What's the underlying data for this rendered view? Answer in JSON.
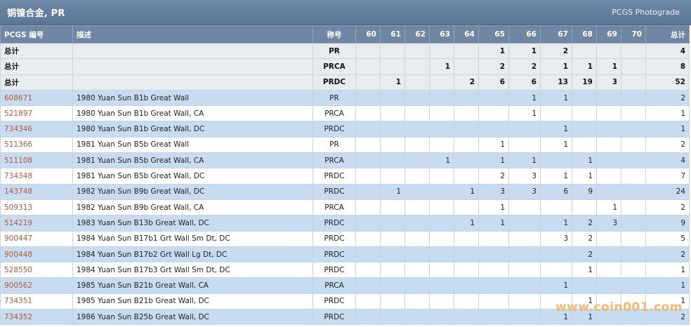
{
  "header": {
    "title": "铜镍合金, PR",
    "brand": "PCGS Photograde"
  },
  "columns": {
    "pcgs": "PCGS 编号",
    "desc": "描述",
    "designation": "称号",
    "grades": [
      "60",
      "61",
      "62",
      "63",
      "64",
      "65",
      "66",
      "67",
      "68",
      "69",
      "70"
    ],
    "total": "总计"
  },
  "totals": [
    {
      "label": "总计",
      "designation": "PR",
      "grades": [
        "",
        "",
        "",
        "",
        "",
        "1",
        "1",
        "2",
        "",
        "",
        ""
      ],
      "total": "4"
    },
    {
      "label": "总计",
      "designation": "PRCA",
      "grades": [
        "",
        "",
        "",
        "1",
        "",
        "2",
        "2",
        "1",
        "1",
        "1",
        ""
      ],
      "total": "8"
    },
    {
      "label": "总计",
      "designation": "PRDC",
      "grades": [
        "",
        "1",
        "",
        "",
        "2",
        "6",
        "6",
        "13",
        "19",
        "3",
        ""
      ],
      "total": "52"
    }
  ],
  "rows": [
    {
      "pcgs": "608671",
      "desc": "1980 Yuan Sun B1b Great Wall",
      "designation": "PR",
      "grades": [
        "",
        "",
        "",
        "",
        "",
        "",
        "1",
        "1",
        "",
        "",
        ""
      ],
      "total": "2"
    },
    {
      "pcgs": "521897",
      "desc": "1980 Yuan Sun B1b Great Wall, CA",
      "designation": "PRCA",
      "grades": [
        "",
        "",
        "",
        "",
        "",
        "",
        "1",
        "",
        "",
        "",
        ""
      ],
      "total": "1"
    },
    {
      "pcgs": "734346",
      "desc": "1980 Yuan Sun B1b Great Wall, DC",
      "designation": "PRDC",
      "grades": [
        "",
        "",
        "",
        "",
        "",
        "",
        "",
        "1",
        "",
        "",
        ""
      ],
      "total": "1"
    },
    {
      "pcgs": "511366",
      "desc": "1981 Yuan Sun B5b Great Wall",
      "designation": "PR",
      "grades": [
        "",
        "",
        "",
        "",
        "",
        "1",
        "",
        "1",
        "",
        "",
        ""
      ],
      "total": "2"
    },
    {
      "pcgs": "511108",
      "desc": "1981 Yuan Sun B5b Great Wall, CA",
      "designation": "PRCA",
      "grades": [
        "",
        "",
        "",
        "1",
        "",
        "1",
        "1",
        "",
        "1",
        "",
        ""
      ],
      "total": "4"
    },
    {
      "pcgs": "734348",
      "desc": "1981 Yuan Sun B5b Great Wall, DC",
      "designation": "PRDC",
      "grades": [
        "",
        "",
        "",
        "",
        "",
        "2",
        "3",
        "1",
        "1",
        "",
        ""
      ],
      "total": "7"
    },
    {
      "pcgs": "143748",
      "desc": "1982 Yuan Sun B9b Great Wall, DC",
      "designation": "PRDC",
      "grades": [
        "",
        "1",
        "",
        "",
        "1",
        "3",
        "3",
        "6",
        "9",
        "",
        ""
      ],
      "total": "24"
    },
    {
      "pcgs": "509313",
      "desc": "1982 Yuan Sun B9b Great Wall, CA",
      "designation": "PRCA",
      "grades": [
        "",
        "",
        "",
        "",
        "",
        "1",
        "",
        "",
        "",
        "1",
        ""
      ],
      "total": "2"
    },
    {
      "pcgs": "514219",
      "desc": "1983 Yuan Sun B13b Great Wall, DC",
      "designation": "PRDC",
      "grades": [
        "",
        "",
        "",
        "",
        "1",
        "1",
        "",
        "1",
        "2",
        "3",
        ""
      ],
      "total": "9"
    },
    {
      "pcgs": "900447",
      "desc": "1984 Yuan Sun B17b1 Grt Wall Sm Dt, DC",
      "designation": "PRDC",
      "grades": [
        "",
        "",
        "",
        "",
        "",
        "",
        "",
        "3",
        "2",
        "",
        ""
      ],
      "total": "5"
    },
    {
      "pcgs": "900448",
      "desc": "1984 Yuan Sun B17b2 Grt Wall Lg Dt, DC",
      "designation": "PRDC",
      "grades": [
        "",
        "",
        "",
        "",
        "",
        "",
        "",
        "",
        "2",
        "",
        ""
      ],
      "total": "2"
    },
    {
      "pcgs": "528550",
      "desc": "1984 Yuan Sun B17b3 Grt Wall Sm Dt, DC",
      "designation": "PRDC",
      "grades": [
        "",
        "",
        "",
        "",
        "",
        "",
        "",
        "",
        "1",
        "",
        ""
      ],
      "total": "1"
    },
    {
      "pcgs": "900562",
      "desc": "1985 Yuan Sun B21b Great Wall, CA",
      "designation": "PRCA",
      "grades": [
        "",
        "",
        "",
        "",
        "",
        "",
        "",
        "1",
        "",
        "",
        ""
      ],
      "total": "1"
    },
    {
      "pcgs": "734351",
      "desc": "1985 Yuan Sun B21b Great Wall, DC",
      "designation": "PRDC",
      "grades": [
        "",
        "",
        "",
        "",
        "",
        "",
        "",
        "",
        "1",
        "",
        ""
      ],
      "total": "1"
    },
    {
      "pcgs": "734352",
      "desc": "1986 Yuan Sun B25b Great Wall, DC",
      "designation": "PRDC",
      "grades": [
        "",
        "",
        "",
        "",
        "",
        "",
        "",
        "1",
        "1",
        "",
        ""
      ],
      "total": "2"
    }
  ],
  "watermark": "www.coin001.com"
}
